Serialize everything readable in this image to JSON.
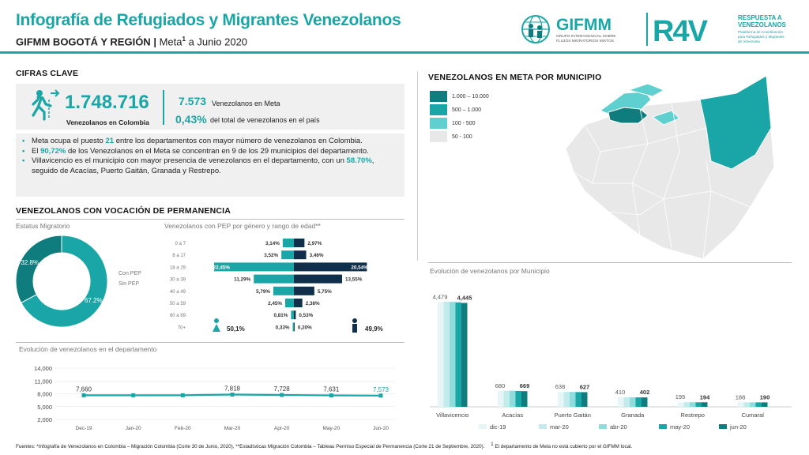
{
  "header": {
    "title": "Infografía de Refugiados y Migrantes Venezolanos",
    "subtitle_bold": "GIFMM BOGOTÁ Y REGIÓN",
    "subtitle_sep": "|",
    "subtitle_place": "Meta",
    "subtitle_sup": "1",
    "subtitle_date": "a Junio 2020",
    "logo_gifmm": "GIFMM",
    "logo_gifmm_sub1": "GRUPO INTERAGENCIAL SOBRE",
    "logo_gifmm_sub2": "FLUJOS MIGRATORIOS MIXTOS",
    "logo_r4v": "R4V",
    "logo_r4v_t1": "RESPUESTA A",
    "logo_r4v_t2": "VENEZOLANOS",
    "logo_r4v_s1": "Plataforma de Coordinación",
    "logo_r4v_s2": "para Refugiados y Migrantes",
    "logo_r4v_s3": "de Venezuela"
  },
  "cifras": {
    "section_title": "CIFRAS CLAVE",
    "total": "1.748.716",
    "total_label": "Venezolanos en Colombia",
    "meta_value": "7.573",
    "meta_label": "Venezolanos en Meta",
    "pct_value": "0,43%",
    "pct_label": "del total de venezolanos en el país"
  },
  "bullets": {
    "b1_pre": "Meta ocupa el puesto ",
    "b1_num": "21",
    "b1_post": " entre los departamentos con mayor número de venezolanos en Colombia.",
    "b2_pre": "El ",
    "b2_num": "90,72%",
    "b2_post": " de los Venezolanos en el Meta se concentran en 9 de los 29 municipios del departamento.",
    "b3_pre": "Villavicencio es el municipio con mayor presencia de venezolanos en el departamento, con un ",
    "b3_num": "58.70%",
    "b3_post": ", seguido de Acacías, Puerto Gaitán, Granada y Restrepo."
  },
  "permanencia": {
    "section_title": "VENEZOLANOS CON VOCACIÓN DE PERMANENCIA",
    "donut_caption": "Estatus Migratorio",
    "pyramid_caption": "Venezolanos con PEP por género y rango de edad**",
    "female_total": "50,1%",
    "male_total": "49,9%"
  },
  "map": {
    "section_title": "VENEZOLANOS EN META POR MUNICIPIO",
    "legend": [
      {
        "label": "1.000 – 10.000",
        "color": "#0f7d7d"
      },
      {
        "label": "500 – 1.000",
        "color": "#1aa6a6"
      },
      {
        "label": "100 - 500",
        "color": "#5fcfcf"
      },
      {
        "label": "50 - 100",
        "color": "#e8e8e8"
      }
    ]
  },
  "colors": {
    "accent": "#1aa6a6",
    "dark": "#0f3a4f",
    "teal_dark": "#0f7d7d",
    "light": "#d0eeee"
  },
  "footer": {
    "sources": "Fuentes: *Infografía de Venezolanos en Colombia – Migración Colombia (Corte 30 de Junio, 2020), **Estadísticas Migración Colombia – Tableau Permiso Especial de Permanencia (Corte 21 de Septiembre, 2020).",
    "note_sup": "1",
    "note": "El departamento de Meta no está cubierto por el GIFMM local."
  },
  "chart_data": [
    {
      "id": "donut",
      "type": "pie",
      "title": "Estatus Migratorio",
      "categories": [
        "Con PEP",
        "Sin PEP"
      ],
      "values": [
        32.8,
        67.2
      ],
      "labels": [
        "32.8%",
        "67.2%"
      ],
      "colors": [
        "#0f7d7d",
        "#1aa6a6"
      ]
    },
    {
      "id": "pyramid",
      "type": "bar",
      "title": "Venezolanos con PEP por género y rango de edad**",
      "categories": [
        "0 a 7",
        "8 a 17",
        "18 a 29",
        "30 a 39",
        "40 a 49",
        "50 a 59",
        "60 a 69",
        "70+"
      ],
      "series": [
        {
          "name": "Mujeres",
          "values": [
            3.14,
            3.52,
            22.45,
            11.29,
            5.79,
            2.45,
            0.81,
            0.33
          ],
          "labels": [
            "3,14%",
            "3,52%",
            "22,45%",
            "11,29%",
            "5,79%",
            "2,45%",
            "0,81%",
            "0,33%"
          ],
          "color": "#1aa6a6"
        },
        {
          "name": "Hombres",
          "values": [
            2.97,
            3.46,
            20.54,
            13.55,
            5.75,
            2.38,
            0.53,
            0.2
          ],
          "labels": [
            "2,97%",
            "3,46%",
            "20,54%",
            "13,55%",
            "5,75%",
            "2,38%",
            "0,53%",
            "0,20%"
          ],
          "color": "#0f2f4a"
        }
      ]
    },
    {
      "id": "evol_dep",
      "type": "line",
      "title": "Evolución de venezolanos en el departamento",
      "categories": [
        "Dec-19",
        "Jan-20",
        "Feb-20",
        "Mar-20",
        "Apr-20",
        "May-20",
        "Jun-20"
      ],
      "values": [
        7660,
        7660,
        7660,
        7818,
        7728,
        7631,
        7573
      ],
      "point_labels": [
        "7,660",
        "",
        "",
        "7,818",
        "7,728",
        "7,631",
        "7,573"
      ],
      "yticks": [
        "14,000",
        "11,000",
        "8,000",
        "5,000",
        "2,000"
      ],
      "ylim": [
        2000,
        14000
      ],
      "color": "#1aa6a6"
    },
    {
      "id": "evol_mun",
      "type": "bar",
      "title": "Evolución de venezolanos por Municipio",
      "categories": [
        "Villavicencio",
        "Acacías",
        "Puerto Gaitán",
        "Granada",
        "Restrepo",
        "Cumaral"
      ],
      "series": [
        {
          "name": "dic-19",
          "values": [
            4479,
            680,
            638,
            410,
            195,
            188
          ],
          "color": "#e6f6f6"
        },
        {
          "name": "mar-20",
          "values": [
            4500,
            690,
            640,
            412,
            196,
            190
          ],
          "color": "#c3ebeb"
        },
        {
          "name": "abr-20",
          "values": [
            4490,
            688,
            636,
            408,
            195,
            190
          ],
          "color": "#8edcdc"
        },
        {
          "name": "may-20",
          "values": [
            4470,
            678,
            630,
            404,
            194,
            190
          ],
          "color": "#1aa6a6"
        },
        {
          "name": "jun-20",
          "values": [
            4445,
            669,
            627,
            402,
            194,
            190
          ],
          "color": "#0f7d7d"
        }
      ],
      "start_labels": [
        "4,479",
        "680",
        "638",
        "410",
        "195",
        "188"
      ],
      "end_labels": [
        "4,445",
        "669",
        "627",
        "402",
        "194",
        "190"
      ],
      "ymax": 4800
    }
  ]
}
